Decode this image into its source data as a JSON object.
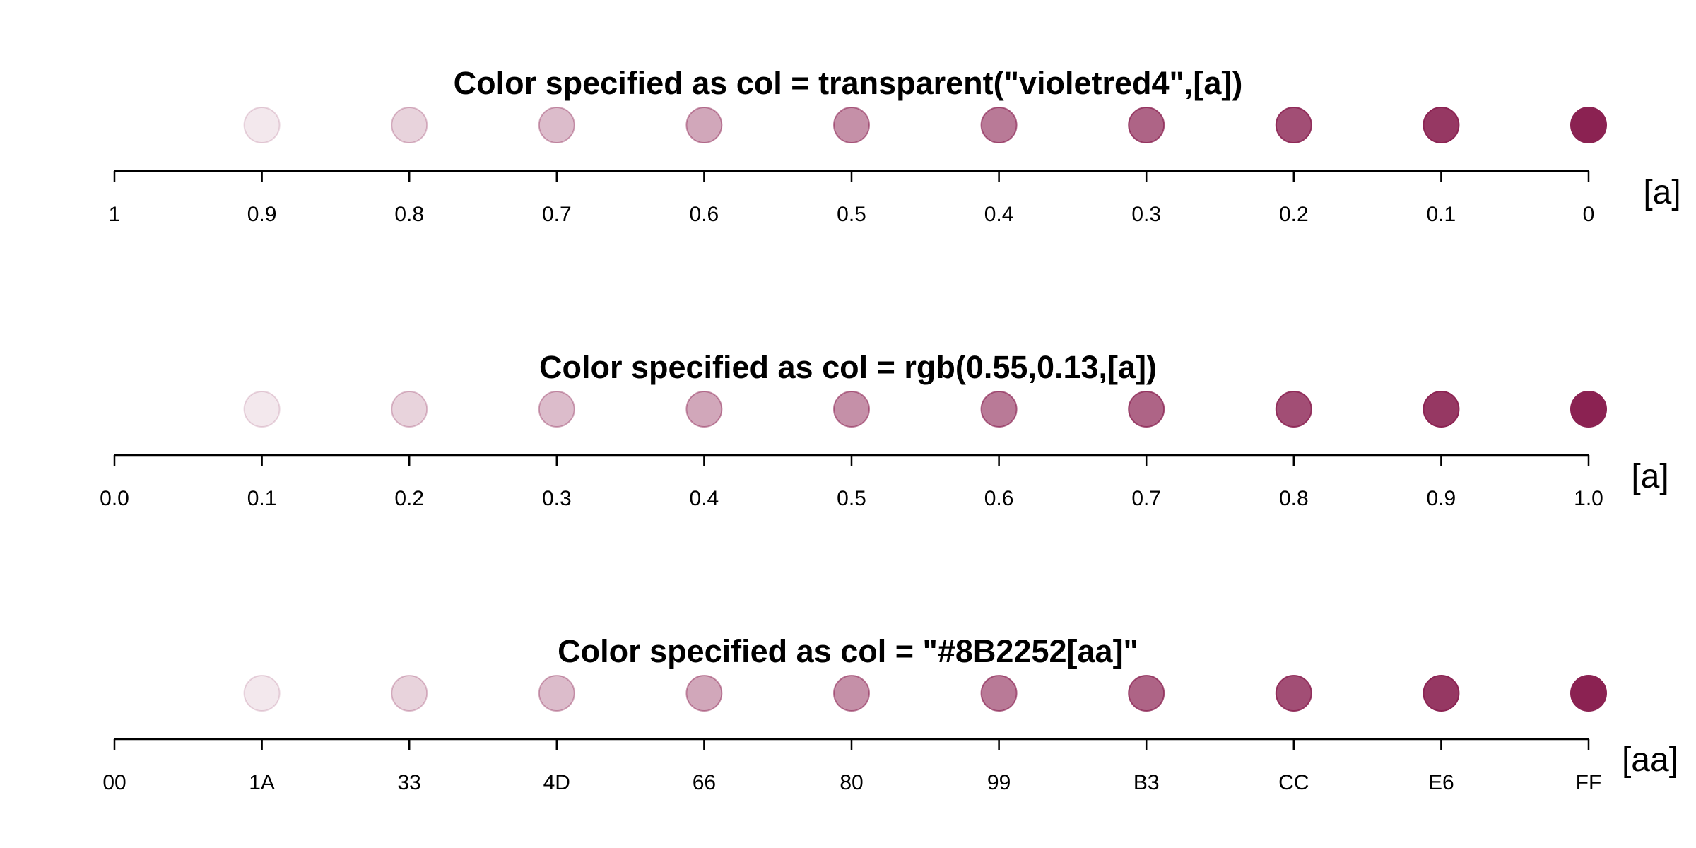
{
  "chart_data": [
    {
      "type": "scatter",
      "title": "Color specified as col = transparent(\"violetred4\",[a])",
      "xlabel": "[a]",
      "x_tick_labels": [
        "1",
        "0.9",
        "0.8",
        "0.7",
        "0.6",
        "0.5",
        "0.4",
        "0.3",
        "0.2",
        "0.1",
        "0"
      ],
      "x": [
        0.9,
        0.8,
        0.7,
        0.6,
        0.5,
        0.4,
        0.3,
        0.2,
        0.1,
        0
      ],
      "transparency": [
        0.9,
        0.8,
        0.7,
        0.6,
        0.5,
        0.4,
        0.3,
        0.2,
        0.1,
        0
      ],
      "color": "#8B2252"
    },
    {
      "type": "scatter",
      "title": "Color specified as col = rgb(0.55,0.13,[a])",
      "xlabel": "[a]",
      "x_tick_labels": [
        "0.0",
        "0.1",
        "0.2",
        "0.3",
        "0.4",
        "0.5",
        "0.6",
        "0.7",
        "0.8",
        "0.9",
        "1.0"
      ],
      "x": [
        0.1,
        0.2,
        0.3,
        0.4,
        0.5,
        0.6,
        0.7,
        0.8,
        0.9,
        1.0
      ],
      "opacity": [
        0.1,
        0.2,
        0.3,
        0.4,
        0.5,
        0.6,
        0.7,
        0.8,
        0.9,
        1.0
      ],
      "color": "#8B2252"
    },
    {
      "type": "scatter",
      "title": "Color specified as col = \"#8B2252[aa]\"",
      "xlabel": "[aa]",
      "x_tick_labels": [
        "00",
        "1A",
        "33",
        "4D",
        "66",
        "80",
        "99",
        "B3",
        "CC",
        "E6",
        "FF"
      ],
      "x": [
        "1A",
        "33",
        "4D",
        "66",
        "80",
        "99",
        "B3",
        "CC",
        "E6",
        "FF"
      ],
      "alpha_hex": [
        "1A",
        "33",
        "4D",
        "66",
        "80",
        "99",
        "B3",
        "CC",
        "E6",
        "FF"
      ],
      "color": "#8B2252"
    }
  ]
}
